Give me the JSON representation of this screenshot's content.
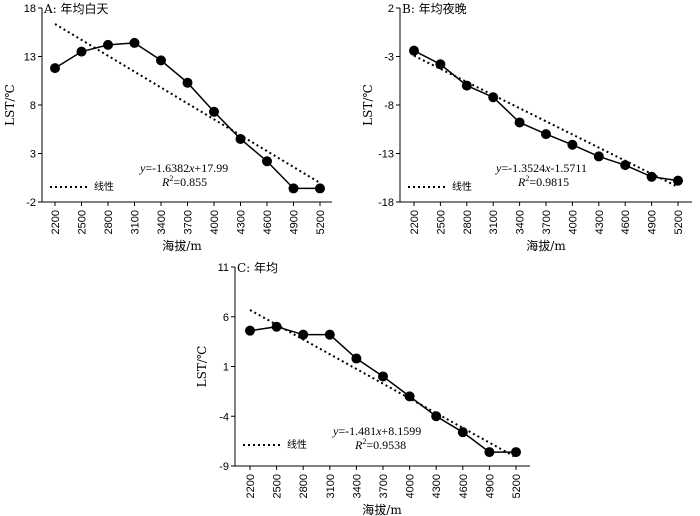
{
  "chart_data": [
    {
      "type": "line",
      "panel_label": "A: 年均白天",
      "xlabel": "海拔/m",
      "ylabel": "LST/℃",
      "categories": [
        "2200",
        "2500",
        "2800",
        "3100",
        "3400",
        "3700",
        "4000",
        "4300",
        "4600",
        "4900",
        "5200"
      ],
      "ylim": [
        -2,
        18
      ],
      "yticks": [
        "18",
        "13",
        "8",
        "3",
        "-2"
      ],
      "series": [
        {
          "values": [
            11.8,
            13.5,
            14.2,
            14.4,
            12.6,
            10.3,
            7.3,
            4.5,
            2.2,
            -0.6,
            -0.6
          ]
        }
      ],
      "trend": {
        "name": "线性",
        "slope": -1.6382,
        "intercept": 17.99
      },
      "equation": {
        "prefix": "y",
        "text": "=-1.6382",
        "var": "x",
        "rest": "+17.99"
      },
      "r2": {
        "label": "R",
        "sup": "2",
        "value": "=0.855"
      },
      "legend": "bottom-left",
      "grid": false
    },
    {
      "type": "line",
      "panel_label": "B: 年均夜晚",
      "xlabel": "海拔/m",
      "ylabel": "LST/℃",
      "categories": [
        "2200",
        "2500",
        "2800",
        "3100",
        "3400",
        "3700",
        "4000",
        "4300",
        "4600",
        "4900",
        "5200"
      ],
      "ylim": [
        -18,
        2
      ],
      "yticks": [
        "2",
        "-3",
        "-8",
        "-13",
        "-18"
      ],
      "series": [
        {
          "values": [
            -2.4,
            -3.8,
            -6.0,
            -7.2,
            -9.8,
            -11.0,
            -12.1,
            -13.3,
            -14.2,
            -15.4,
            -15.8
          ]
        }
      ],
      "trend": {
        "name": "线性",
        "slope": -1.3524,
        "intercept": -1.5711
      },
      "equation": {
        "prefix": "y",
        "text": "=-1.3524",
        "var": "x",
        "rest": "-1.5711"
      },
      "r2": {
        "label": "R",
        "sup": "2",
        "value": "=0.9815"
      },
      "legend": "bottom-left",
      "grid": false
    },
    {
      "type": "line",
      "panel_label": "C: 年均",
      "xlabel": "海拔/m",
      "ylabel": "LST/℃",
      "categories": [
        "2200",
        "2500",
        "2800",
        "3100",
        "3400",
        "3700",
        "4000",
        "4300",
        "4600",
        "4900",
        "5200"
      ],
      "ylim": [
        -9,
        11
      ],
      "yticks": [
        "11",
        "6",
        "1",
        "-4",
        "-9"
      ],
      "series": [
        {
          "values": [
            4.6,
            5.0,
            4.2,
            4.2,
            1.8,
            0.0,
            -2.0,
            -4.0,
            -5.6,
            -7.6,
            -7.6
          ]
        }
      ],
      "trend": {
        "name": "线性",
        "slope": -1.481,
        "intercept": 8.1599
      },
      "equation": {
        "prefix": "y",
        "text": "=-1.481",
        "var": "x",
        "rest": "+8.1599"
      },
      "r2": {
        "label": "R",
        "sup": "2",
        "value": "=0.9538"
      },
      "legend": "bottom-left",
      "grid": false
    }
  ]
}
